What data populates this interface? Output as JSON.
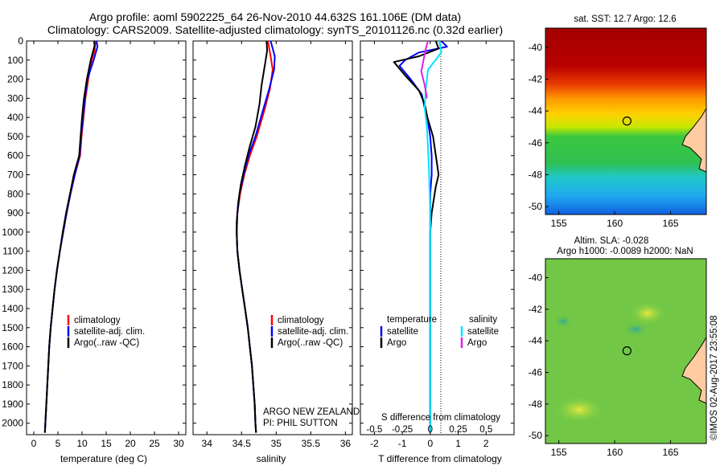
{
  "header": {
    "title_line1": "Argo profile: aoml 5902225_64 26-Nov-2010 44.632S 161.106E (DM data)",
    "title_line2": "Climatology: CARS2009. Satellite-adjusted climatology: synTS_20101126.nc (0.32d earlier)"
  },
  "colors": {
    "climatology": "#ff0000",
    "satellite": "#0000ff",
    "argo": "#000000",
    "salinity_satellite": "#00e5ff",
    "salinity_argo": "#e020e0"
  },
  "chart_data": [
    {
      "type": "line",
      "panel": "temperature",
      "xlabel": "temperature (deg C)",
      "ylabel": "",
      "xlim": [
        -1.5,
        31.5
      ],
      "ylim": [
        2060,
        0
      ],
      "x_ticks": [
        0,
        5,
        10,
        15,
        20,
        25,
        30
      ],
      "y_ticks": [
        0,
        100,
        200,
        300,
        400,
        500,
        600,
        700,
        800,
        900,
        1000,
        1100,
        1200,
        1300,
        1400,
        1500,
        1600,
        1700,
        1800,
        1900,
        2000
      ],
      "legend": [
        "climatology",
        "satellite-adj. clim.",
        "Argo(..raw -QC)"
      ],
      "series": [
        {
          "name": "climatology",
          "color": "#ff0000",
          "points": [
            [
              12.8,
              0
            ],
            [
              12.6,
              50
            ],
            [
              12.0,
              100
            ],
            [
              11.3,
              200
            ],
            [
              10.7,
              300
            ],
            [
              10.3,
              400
            ],
            [
              9.9,
              500
            ],
            [
              9.6,
              600
            ],
            [
              8.5,
              700
            ],
            [
              7.6,
              800
            ],
            [
              6.8,
              900
            ],
            [
              6.1,
              1000
            ],
            [
              5.4,
              1100
            ],
            [
              4.8,
              1200
            ],
            [
              4.3,
              1300
            ],
            [
              3.9,
              1400
            ],
            [
              3.5,
              1500
            ],
            [
              3.2,
              1600
            ],
            [
              3.0,
              1700
            ],
            [
              2.8,
              1800
            ],
            [
              2.6,
              1900
            ],
            [
              2.4,
              2000
            ],
            [
              2.3,
              2050
            ]
          ]
        },
        {
          "name": "satellite-adj. clim.",
          "color": "#0000ff",
          "points": [
            [
              13.0,
              0
            ],
            [
              13.2,
              30
            ],
            [
              12.4,
              100
            ],
            [
              11.1,
              200
            ],
            [
              10.6,
              300
            ],
            [
              10.2,
              400
            ],
            [
              9.8,
              500
            ],
            [
              9.5,
              600
            ],
            [
              8.5,
              700
            ],
            [
              7.6,
              800
            ],
            [
              6.8,
              900
            ],
            [
              6.1,
              1000
            ],
            [
              5.4,
              1100
            ],
            [
              4.8,
              1200
            ],
            [
              4.3,
              1300
            ],
            [
              3.9,
              1400
            ],
            [
              3.5,
              1500
            ],
            [
              3.2,
              1600
            ],
            [
              3.0,
              1700
            ],
            [
              2.8,
              1800
            ],
            [
              2.6,
              1900
            ],
            [
              2.4,
              2000
            ],
            [
              2.3,
              2050
            ]
          ]
        },
        {
          "name": "Argo(..raw -QC)",
          "color": "#000000",
          "points": [
            [
              12.5,
              0
            ],
            [
              12.6,
              25
            ],
            [
              11.8,
              100
            ],
            [
              11.0,
              200
            ],
            [
              10.4,
              300
            ],
            [
              10.0,
              400
            ],
            [
              9.7,
              500
            ],
            [
              9.4,
              600
            ],
            [
              8.3,
              700
            ],
            [
              7.5,
              800
            ],
            [
              6.7,
              900
            ],
            [
              6.0,
              1000
            ],
            [
              5.4,
              1100
            ],
            [
              4.8,
              1200
            ],
            [
              4.3,
              1300
            ],
            [
              3.9,
              1400
            ],
            [
              3.5,
              1500
            ],
            [
              3.2,
              1600
            ],
            [
              3.0,
              1700
            ],
            [
              2.8,
              1800
            ],
            [
              2.6,
              1900
            ],
            [
              2.4,
              2000
            ],
            [
              2.3,
              2050
            ]
          ]
        }
      ]
    },
    {
      "type": "line",
      "panel": "salinity",
      "xlabel": "salinity",
      "ylabel": "",
      "xlim": [
        33.8,
        36.1
      ],
      "ylim": [
        2060,
        0
      ],
      "x_ticks": [
        34,
        34.5,
        35,
        35.5,
        36
      ],
      "legend": [
        "climatology",
        "satellite-adj. clim.",
        "Argo(..raw -QC)"
      ],
      "annotation_line1": "ARGO NEW ZEALAND",
      "annotation_line2": "PI: PHIL SUTTON",
      "series": [
        {
          "name": "climatology",
          "color": "#ff0000",
          "points": [
            [
              34.88,
              0
            ],
            [
              34.92,
              80
            ],
            [
              34.95,
              150
            ],
            [
              34.91,
              250
            ],
            [
              34.84,
              350
            ],
            [
              34.72,
              500
            ],
            [
              34.62,
              600
            ],
            [
              34.54,
              700
            ],
            [
              34.48,
              800
            ],
            [
              34.44,
              900
            ],
            [
              34.43,
              1000
            ],
            [
              34.44,
              1100
            ],
            [
              34.47,
              1200
            ],
            [
              34.51,
              1300
            ],
            [
              34.55,
              1400
            ],
            [
              34.59,
              1500
            ],
            [
              34.62,
              1600
            ],
            [
              34.65,
              1700
            ],
            [
              34.67,
              1800
            ],
            [
              34.69,
              1900
            ],
            [
              34.7,
              2000
            ],
            [
              34.71,
              2050
            ]
          ]
        },
        {
          "name": "satellite-adj. clim.",
          "color": "#0000ff",
          "points": [
            [
              34.92,
              0
            ],
            [
              34.98,
              80
            ],
            [
              34.97,
              150
            ],
            [
              34.9,
              250
            ],
            [
              34.82,
              350
            ],
            [
              34.7,
              500
            ],
            [
              34.6,
              600
            ],
            [
              34.53,
              700
            ],
            [
              34.47,
              800
            ],
            [
              34.44,
              900
            ],
            [
              34.43,
              1000
            ],
            [
              34.44,
              1100
            ],
            [
              34.47,
              1200
            ],
            [
              34.51,
              1300
            ],
            [
              34.55,
              1400
            ],
            [
              34.59,
              1500
            ],
            [
              34.62,
              1600
            ],
            [
              34.65,
              1700
            ],
            [
              34.67,
              1800
            ],
            [
              34.69,
              1900
            ],
            [
              34.7,
              2000
            ],
            [
              34.71,
              2050
            ]
          ]
        },
        {
          "name": "Argo(..raw -QC)",
          "color": "#000000",
          "points": [
            [
              34.86,
              0
            ],
            [
              34.87,
              50
            ],
            [
              34.84,
              120
            ],
            [
              34.79,
              230
            ],
            [
              34.76,
              330
            ],
            [
              34.7,
              450
            ],
            [
              34.62,
              550
            ],
            [
              34.55,
              650
            ],
            [
              34.49,
              750
            ],
            [
              34.45,
              850
            ],
            [
              34.43,
              950
            ],
            [
              34.43,
              1000
            ],
            [
              34.44,
              1100
            ],
            [
              34.47,
              1200
            ],
            [
              34.51,
              1300
            ],
            [
              34.55,
              1400
            ],
            [
              34.59,
              1500
            ],
            [
              34.62,
              1600
            ],
            [
              34.65,
              1700
            ],
            [
              34.67,
              1800
            ],
            [
              34.69,
              1900
            ],
            [
              34.7,
              2000
            ],
            [
              34.71,
              2050
            ]
          ]
        }
      ]
    },
    {
      "type": "line",
      "panel": "difference",
      "xlabel": "T difference from climatology",
      "xlabel_top": "S difference from climatology",
      "xlim": [
        -2.5,
        3.0
      ],
      "ylim": [
        2060,
        0
      ],
      "x_ticks": [
        -2,
        -1,
        0,
        1,
        2
      ],
      "s_ticks": [
        "-0.5",
        "-0.25",
        "0",
        "0.25",
        "0.5"
      ],
      "s_scale": 4,
      "legend_temperature": "temperature",
      "legend_salinity": "salinity",
      "legend_satellite": "satellite",
      "legend_argo": "Argo",
      "series": [
        {
          "name": "temperature satellite",
          "color": "#0000ff",
          "points": [
            [
              0.4,
              0
            ],
            [
              0.6,
              30
            ],
            [
              -0.4,
              60
            ],
            [
              -0.9,
              100
            ],
            [
              -1.1,
              130
            ],
            [
              -0.7,
              200
            ],
            [
              -0.3,
              280
            ],
            [
              -0.2,
              350
            ],
            [
              -0.1,
              400
            ],
            [
              0.0,
              500
            ],
            [
              0.05,
              600
            ],
            [
              0.05,
              700
            ],
            [
              0.0,
              800
            ],
            [
              0.0,
              1000
            ],
            [
              0.0,
              1500
            ],
            [
              0.0,
              2050
            ]
          ]
        },
        {
          "name": "temperature Argo",
          "color": "#000000",
          "points": [
            [
              0.2,
              0
            ],
            [
              0.3,
              40
            ],
            [
              -0.4,
              80
            ],
            [
              -1.3,
              110
            ],
            [
              -0.9,
              180
            ],
            [
              -0.4,
              260
            ],
            [
              -0.2,
              330
            ],
            [
              -0.1,
              400
            ],
            [
              0.1,
              500
            ],
            [
              0.2,
              600
            ],
            [
              0.3,
              700
            ],
            [
              0.2,
              760
            ],
            [
              0.05,
              900
            ],
            [
              0.0,
              1000
            ],
            [
              0.0,
              1500
            ],
            [
              0.0,
              2050
            ]
          ]
        },
        {
          "name": "salinity satellite",
          "color": "#00e5ff",
          "points": [
            [
              0.08,
              0
            ],
            [
              0.1,
              60
            ],
            [
              -0.02,
              150
            ],
            [
              -0.04,
              250
            ],
            [
              -0.05,
              350
            ],
            [
              -0.03,
              450
            ],
            [
              -0.02,
              550
            ],
            [
              -0.01,
              700
            ],
            [
              0.0,
              900
            ],
            [
              0.0,
              1300
            ],
            [
              0.0,
              2050
            ]
          ]
        },
        {
          "name": "salinity Argo",
          "color": "#e020e0",
          "points": [
            [
              -0.02,
              0
            ],
            [
              -0.04,
              40
            ],
            [
              -0.06,
              100
            ],
            [
              -0.08,
              160
            ],
            [
              -0.05,
              230
            ],
            [
              -0.03,
              300
            ]
          ]
        }
      ]
    }
  ],
  "map_sst": {
    "title": "sat. SST: 12.7  Argo: 12.6",
    "x_ticks": [
      155,
      160,
      165
    ],
    "y_ticks": [
      -40,
      -42,
      -44,
      -46,
      -48,
      -50
    ],
    "marker_lon": 161.1,
    "marker_lat": -44.63
  },
  "map_sla": {
    "title_line1": "Altim. SLA: -0.028",
    "title_line2": "Argo h1000: -0.0089 h2000: NaN",
    "x_ticks": [
      155,
      160,
      165
    ],
    "y_ticks": [
      -40,
      -42,
      -44,
      -46,
      -48,
      -50
    ],
    "marker_lon": 161.1,
    "marker_lat": -44.63
  },
  "footer": {
    "credit": "©IMOS 02-Aug-2017 23:55:08"
  }
}
